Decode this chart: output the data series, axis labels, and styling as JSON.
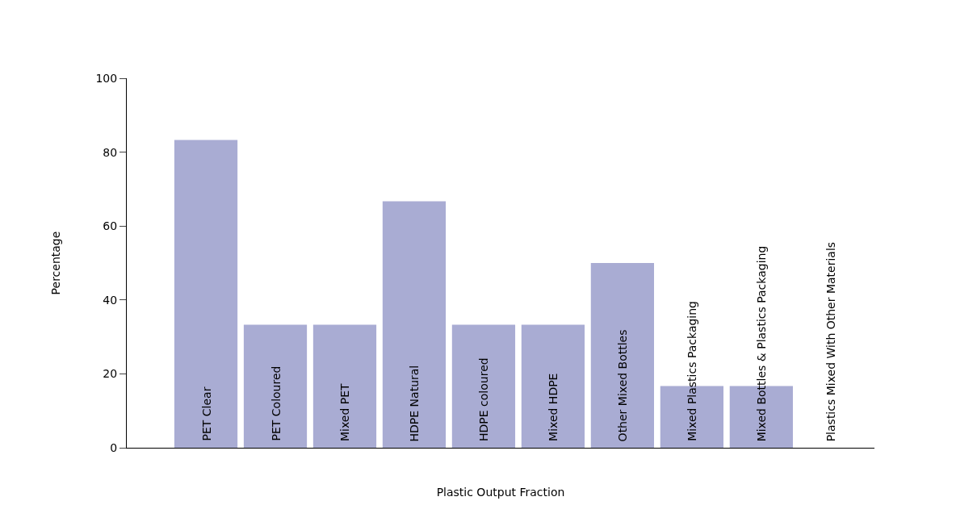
{
  "chart_data": {
    "type": "bar",
    "xlabel": "Plastic Output Fraction",
    "ylabel": "Percentage",
    "categories": [
      "PET Clear",
      "PET Coloured",
      "Mixed PET",
      "HDPE Natural",
      "HDPE coloured",
      "Mixed HDPE",
      "Other Mixed Bottles",
      "Mixed Plastics Packaging",
      "Mixed Bottles & Plastics Packaging",
      "Plastics Mixed With Other Materials"
    ],
    "values": [
      83.3,
      33.3,
      33.3,
      66.7,
      33.3,
      33.3,
      50,
      16.7,
      16.7,
      0
    ],
    "color": "#a9acd3",
    "ylim": [
      0,
      100
    ],
    "yticks": [
      0,
      20,
      40,
      60,
      80,
      100
    ],
    "tick_labels": "y"
  }
}
